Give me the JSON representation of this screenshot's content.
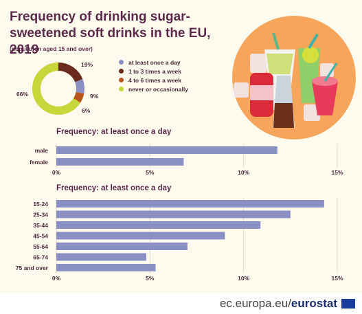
{
  "title": "Frequency of drinking sugar-sweetened soft drinks in the EU, 2019",
  "subtitle": "(population aged 15 and over)",
  "legend": [
    {
      "label": "at least once a day",
      "color": "#8a8fc4"
    },
    {
      "label": "1 to 3 times a week",
      "color": "#6b2a1e"
    },
    {
      "label": "4 to 6 times a week",
      "color": "#b8541d"
    },
    {
      "label": "never or occasionally",
      "color": "#c9d639"
    }
  ],
  "footer": {
    "domain": "ec.europa.eu/",
    "brand": "eurostat"
  },
  "chart_data": [
    {
      "type": "pie",
      "title": "",
      "categories": [
        "at least once a day",
        "1 to 3 times a week",
        "4 to 6 times a week",
        "never or occasionally"
      ],
      "values": [
        9,
        19,
        6,
        66
      ],
      "labels": [
        "9%",
        "19%",
        "6%",
        "66%"
      ],
      "colors": [
        "#8a8fc4",
        "#6b2a1e",
        "#b8541d",
        "#c9d639"
      ]
    },
    {
      "type": "bar",
      "orientation": "horizontal",
      "title": "Frequency: at least once a day",
      "categories": [
        "male",
        "female"
      ],
      "values": [
        11.8,
        6.8
      ],
      "xlim": [
        0,
        15
      ],
      "ticks": [
        "0%",
        "5%",
        "10%",
        "15%"
      ],
      "color": "#8a8fc4"
    },
    {
      "type": "bar",
      "orientation": "horizontal",
      "title": "Frequency: at least once a day",
      "categories": [
        "15-24",
        "25-34",
        "35-44",
        "45-54",
        "55-64",
        "65-74",
        "75 and over"
      ],
      "values": [
        14.3,
        12.5,
        10.9,
        9.0,
        7.0,
        4.8,
        5.3
      ],
      "xlim": [
        0,
        15
      ],
      "ticks": [
        "0%",
        "5%",
        "10%",
        "15%"
      ],
      "color": "#8a8fc4"
    }
  ]
}
